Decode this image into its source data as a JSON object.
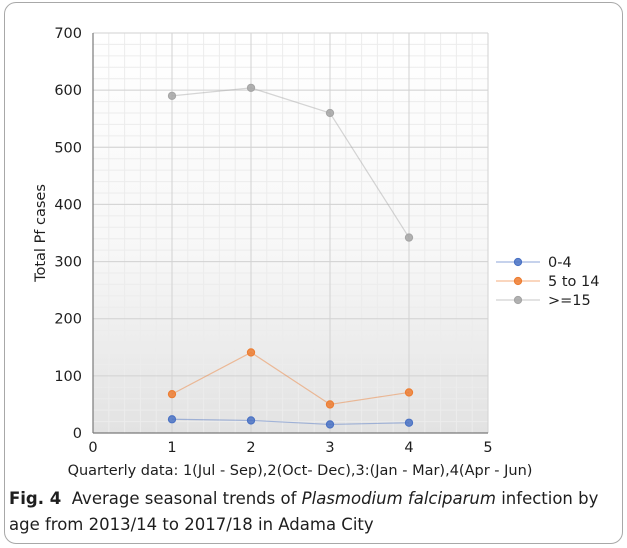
{
  "chart_data": {
    "type": "line",
    "title": "",
    "xlabel": "Quarterly  data: 1(Jul - Sep),2(Oct- Dec),3:(Jan - Mar),4(Apr - Jun)",
    "ylabel": "Total Pf cases",
    "xlim": [
      0,
      5
    ],
    "ylim": [
      0,
      700
    ],
    "x_ticks": [
      0,
      1,
      2,
      3,
      4,
      5
    ],
    "y_ticks": [
      0,
      100,
      200,
      300,
      400,
      500,
      600,
      700
    ],
    "x": [
      1,
      2,
      3,
      4
    ],
    "grid": true,
    "legend_position": "right",
    "series": [
      {
        "name": "0-4",
        "values": [
          24,
          22,
          15,
          18
        ],
        "color": "#4a72c4"
      },
      {
        "name": "5 to 14",
        "values": [
          68,
          141,
          50,
          71
        ],
        "color": "#ed7d31"
      },
      {
        "name": ">=15",
        "values": [
          590,
          604,
          560,
          342
        ],
        "color": "#a5a5a5"
      }
    ]
  },
  "caption": {
    "label": "Fig. 4",
    "text_before": "Average seasonal trends of ",
    "species": "Plasmodium falciparum",
    "text_after": " infection by age from 2013/14 to 2017/18 in Adama City"
  }
}
